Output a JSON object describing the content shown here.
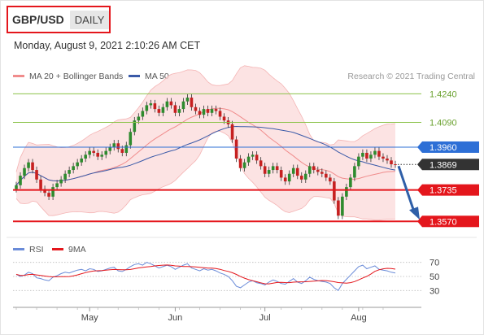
{
  "header": {
    "symbol": "GBP/USD",
    "period": "DAILY"
  },
  "timestamp": "Monday, August 9, 2021 2:10:26 AM CET",
  "credit": "Research © 2021 Trading Central",
  "colors": {
    "bollinger": "#f08c8c",
    "ma50": "#3a5aa8",
    "resistance": "#8bc34a",
    "support": "#e4161c",
    "pivot": "#2d6fd6",
    "up": "#2e8b2e",
    "down": "#c62020",
    "arrow": "#2f5fa8",
    "rsi": "#6a8bd8",
    "ma9": "#e4161c"
  },
  "legend": {
    "bollinger_label": "MA 20 + Bollinger Bands",
    "ma50_label": "MA 50",
    "rsi_label": "RSI",
    "ma9_label": "9MA"
  },
  "chart_data": {
    "type": "candlestick",
    "price_axis": {
      "min": 1.352,
      "max": 1.428
    },
    "levels": [
      {
        "name": "resistance-2",
        "value": 1.424,
        "label": "1.4240",
        "kind": "resistance"
      },
      {
        "name": "resistance-1",
        "value": 1.409,
        "label": "1.4090",
        "kind": "resistance"
      },
      {
        "name": "pivot",
        "value": 1.396,
        "label": "1.3960",
        "kind": "pivot"
      },
      {
        "name": "support-1",
        "value": 1.3735,
        "label": "1.3735",
        "kind": "support"
      },
      {
        "name": "support-2",
        "value": 1.357,
        "label": "1.3570",
        "kind": "support"
      }
    ],
    "last_price": {
      "value": 1.3869,
      "label": "1.3869"
    },
    "months": [
      "May",
      "Jun",
      "Jul",
      "Aug"
    ],
    "month_start_index": [
      18,
      39,
      61,
      84
    ],
    "closes": [
      1.376,
      1.381,
      1.385,
      1.388,
      1.384,
      1.379,
      1.374,
      1.372,
      1.37,
      1.375,
      1.377,
      1.379,
      1.382,
      1.384,
      1.386,
      1.388,
      1.39,
      1.392,
      1.394,
      1.393,
      1.391,
      1.392,
      1.394,
      1.396,
      1.398,
      1.395,
      1.393,
      1.397,
      1.404,
      1.41,
      1.412,
      1.415,
      1.418,
      1.419,
      1.416,
      1.414,
      1.417,
      1.42,
      1.418,
      1.414,
      1.416,
      1.42,
      1.422,
      1.417,
      1.415,
      1.413,
      1.416,
      1.414,
      1.416,
      1.415,
      1.412,
      1.41,
      1.408,
      1.4,
      1.39,
      1.385,
      1.388,
      1.391,
      1.392,
      1.389,
      1.386,
      1.382,
      1.384,
      1.386,
      1.384,
      1.38,
      1.378,
      1.382,
      1.385,
      1.381,
      1.379,
      1.382,
      1.386,
      1.384,
      1.383,
      1.382,
      1.38,
      1.378,
      1.368,
      1.36,
      1.37,
      1.375,
      1.38,
      1.386,
      1.391,
      1.393,
      1.39,
      1.392,
      1.394,
      1.391,
      1.39,
      1.389,
      1.387,
      1.3869
    ],
    "rsi_axis": {
      "ticks": [
        70,
        50,
        30
      ]
    },
    "rsi": [
      53,
      50,
      52,
      56,
      54,
      48,
      47,
      45,
      44,
      49,
      51,
      54,
      56,
      55,
      57,
      59,
      60,
      58,
      61,
      60,
      57,
      58,
      60,
      62,
      63,
      58,
      57,
      60,
      64,
      67,
      68,
      66,
      70,
      68,
      65,
      62,
      64,
      66,
      64,
      60,
      63,
      66,
      68,
      62,
      60,
      58,
      61,
      59,
      60,
      58,
      55,
      53,
      50,
      44,
      36,
      34,
      38,
      42,
      44,
      41,
      40,
      38,
      42,
      45,
      43,
      40,
      39,
      43,
      47,
      42,
      40,
      44,
      49,
      46,
      44,
      43,
      42,
      40,
      34,
      30,
      40,
      46,
      52,
      58,
      64,
      66,
      61,
      63,
      65,
      60,
      59,
      58,
      56,
      55
    ]
  }
}
